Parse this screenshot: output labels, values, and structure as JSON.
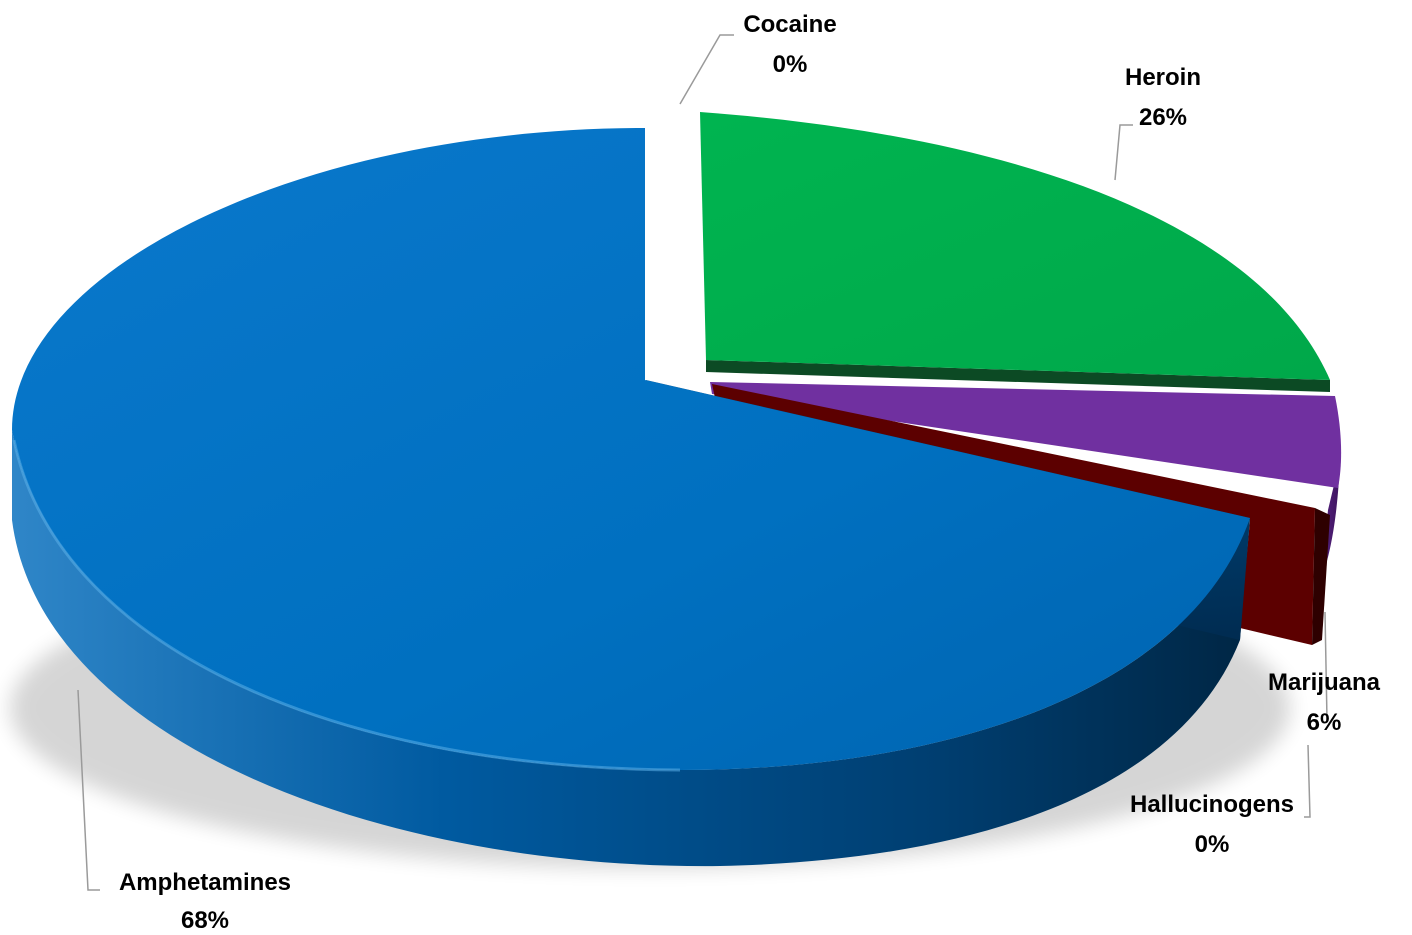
{
  "chart_data": {
    "type": "pie",
    "style": "3d-exploded",
    "categories": [
      "Cocaine",
      "Heroin",
      "Marijuana",
      "Hallucinogens",
      "Amphetamines"
    ],
    "values": [
      0,
      26,
      6,
      0,
      68
    ],
    "value_labels": [
      "0%",
      "26%",
      "6%",
      "0%",
      "68%"
    ],
    "colors": [
      "#7a7a7a",
      "#00b050",
      "#7030a0",
      "#7a0000",
      "#0070c0"
    ],
    "legend": "none",
    "data_labels": "outside-with-leader-lines"
  }
}
